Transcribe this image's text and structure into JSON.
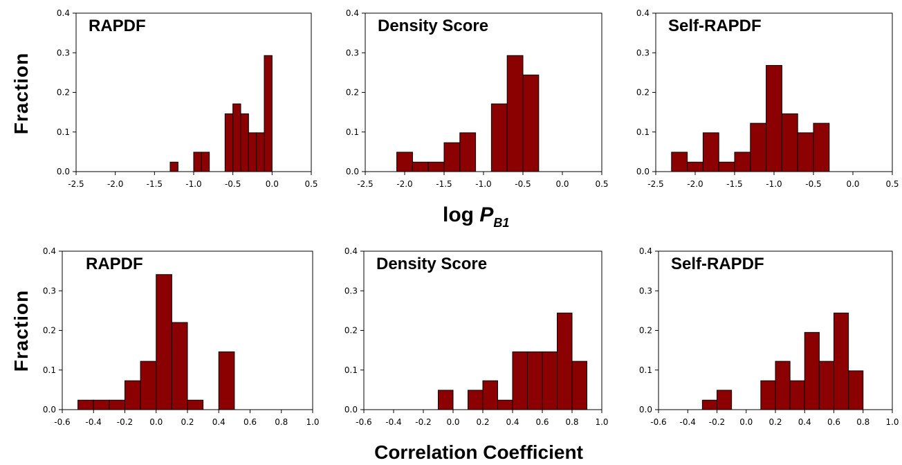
{
  "labels": {
    "y_axis": "Fraction",
    "top_x_log": "log ",
    "top_x_var": "P",
    "top_x_sub": "B1",
    "bottom_x": "Correlation Coefficient"
  },
  "colors": {
    "bar_fill": "#8b0000",
    "bar_stroke": "#000000"
  },
  "chart_data": [
    {
      "type": "bar",
      "title": "RAPDF",
      "xlim": [
        -2.5,
        0.5
      ],
      "ylim": [
        0,
        0.4
      ],
      "xticks": [
        "-2.5",
        "-2.0",
        "-1.5",
        "-1.0",
        "-0.5",
        "0.0",
        "0.5"
      ],
      "yticks": [
        "0.0",
        "0.1",
        "0.2",
        "0.3",
        "0.4"
      ],
      "bin_width": 0.1,
      "bins": [
        {
          "x": -1.25,
          "y": 0.024
        },
        {
          "x": -0.95,
          "y": 0.049
        },
        {
          "x": -0.85,
          "y": 0.049
        },
        {
          "x": -0.55,
          "y": 0.146
        },
        {
          "x": -0.45,
          "y": 0.171
        },
        {
          "x": -0.35,
          "y": 0.146
        },
        {
          "x": -0.25,
          "y": 0.098
        },
        {
          "x": -0.15,
          "y": 0.098
        },
        {
          "x": -0.05,
          "y": 0.293
        }
      ]
    },
    {
      "type": "bar",
      "title": "Density Score",
      "xlim": [
        -2.5,
        0.5
      ],
      "ylim": [
        0,
        0.4
      ],
      "xticks": [
        "-2.5",
        "-2.0",
        "-1.5",
        "-1.0",
        "-0.5",
        "0.0",
        "0.5"
      ],
      "yticks": [
        "0.0",
        "0.1",
        "0.2",
        "0.3",
        "0.4"
      ],
      "bin_width": 0.2,
      "bins": [
        {
          "x": -2.0,
          "y": 0.049
        },
        {
          "x": -1.8,
          "y": 0.024
        },
        {
          "x": -1.6,
          "y": 0.024
        },
        {
          "x": -1.4,
          "y": 0.073
        },
        {
          "x": -1.2,
          "y": 0.098
        },
        {
          "x": -0.8,
          "y": 0.171
        },
        {
          "x": -0.6,
          "y": 0.293
        },
        {
          "x": -0.4,
          "y": 0.244
        }
      ]
    },
    {
      "type": "bar",
      "title": "Self-RAPDF",
      "xlim": [
        -2.5,
        0.5
      ],
      "ylim": [
        0,
        0.4
      ],
      "xticks": [
        "-2.5",
        "-2.0",
        "-1.5",
        "-1.0",
        "-0.5",
        "0.0",
        "0.5"
      ],
      "yticks": [
        "0.0",
        "0.1",
        "0.2",
        "0.3",
        "0.4"
      ],
      "bin_width": 0.2,
      "bins": [
        {
          "x": -2.2,
          "y": 0.049
        },
        {
          "x": -2.0,
          "y": 0.024
        },
        {
          "x": -1.8,
          "y": 0.098
        },
        {
          "x": -1.6,
          "y": 0.024
        },
        {
          "x": -1.4,
          "y": 0.049
        },
        {
          "x": -1.2,
          "y": 0.122
        },
        {
          "x": -1.0,
          "y": 0.268
        },
        {
          "x": -0.8,
          "y": 0.146
        },
        {
          "x": -0.6,
          "y": 0.098
        },
        {
          "x": -0.4,
          "y": 0.122
        }
      ]
    },
    {
      "type": "bar",
      "title": "RAPDF",
      "xlim": [
        -0.6,
        1.0
      ],
      "ylim": [
        0,
        0.4
      ],
      "xticks": [
        "-0.6",
        "-0.4",
        "-0.2",
        "0.0",
        "0.2",
        "0.4",
        "0.6",
        "0.8",
        "1.0"
      ],
      "yticks": [
        "0.0",
        "0.1",
        "0.2",
        "0.3",
        "0.4"
      ],
      "bin_width": 0.1,
      "bins": [
        {
          "x": -0.45,
          "y": 0.024
        },
        {
          "x": -0.35,
          "y": 0.024
        },
        {
          "x": -0.25,
          "y": 0.024
        },
        {
          "x": -0.15,
          "y": 0.073
        },
        {
          "x": -0.05,
          "y": 0.122
        },
        {
          "x": 0.05,
          "y": 0.341
        },
        {
          "x": 0.15,
          "y": 0.22
        },
        {
          "x": 0.25,
          "y": 0.024
        },
        {
          "x": 0.45,
          "y": 0.146
        }
      ]
    },
    {
      "type": "bar",
      "title": "Density Score",
      "xlim": [
        -0.6,
        1.0
      ],
      "ylim": [
        0,
        0.4
      ],
      "xticks": [
        "-0.6",
        "-0.4",
        "-0.2",
        "0.0",
        "0.2",
        "0.4",
        "0.6",
        "0.8",
        "1.0"
      ],
      "yticks": [
        "0.0",
        "0.1",
        "0.2",
        "0.3",
        "0.4"
      ],
      "bin_width": 0.1,
      "bins": [
        {
          "x": -0.05,
          "y": 0.049
        },
        {
          "x": 0.15,
          "y": 0.049
        },
        {
          "x": 0.25,
          "y": 0.073
        },
        {
          "x": 0.35,
          "y": 0.024
        },
        {
          "x": 0.45,
          "y": 0.146
        },
        {
          "x": 0.55,
          "y": 0.146
        },
        {
          "x": 0.65,
          "y": 0.146
        },
        {
          "x": 0.75,
          "y": 0.244
        },
        {
          "x": 0.85,
          "y": 0.122
        }
      ]
    },
    {
      "type": "bar",
      "title": "Self-RAPDF",
      "xlim": [
        -0.6,
        1.0
      ],
      "ylim": [
        0,
        0.4
      ],
      "xticks": [
        "-0.6",
        "-0.4",
        "-0.2",
        "0.0",
        "0.2",
        "0.4",
        "0.6",
        "0.8",
        "1.0"
      ],
      "yticks": [
        "0.0",
        "0.1",
        "0.2",
        "0.3",
        "0.4"
      ],
      "bin_width": 0.1,
      "bins": [
        {
          "x": -0.25,
          "y": 0.024
        },
        {
          "x": -0.15,
          "y": 0.049
        },
        {
          "x": 0.15,
          "y": 0.073
        },
        {
          "x": 0.25,
          "y": 0.122
        },
        {
          "x": 0.35,
          "y": 0.073
        },
        {
          "x": 0.45,
          "y": 0.195
        },
        {
          "x": 0.55,
          "y": 0.122
        },
        {
          "x": 0.65,
          "y": 0.244
        },
        {
          "x": 0.75,
          "y": 0.098
        }
      ]
    }
  ]
}
